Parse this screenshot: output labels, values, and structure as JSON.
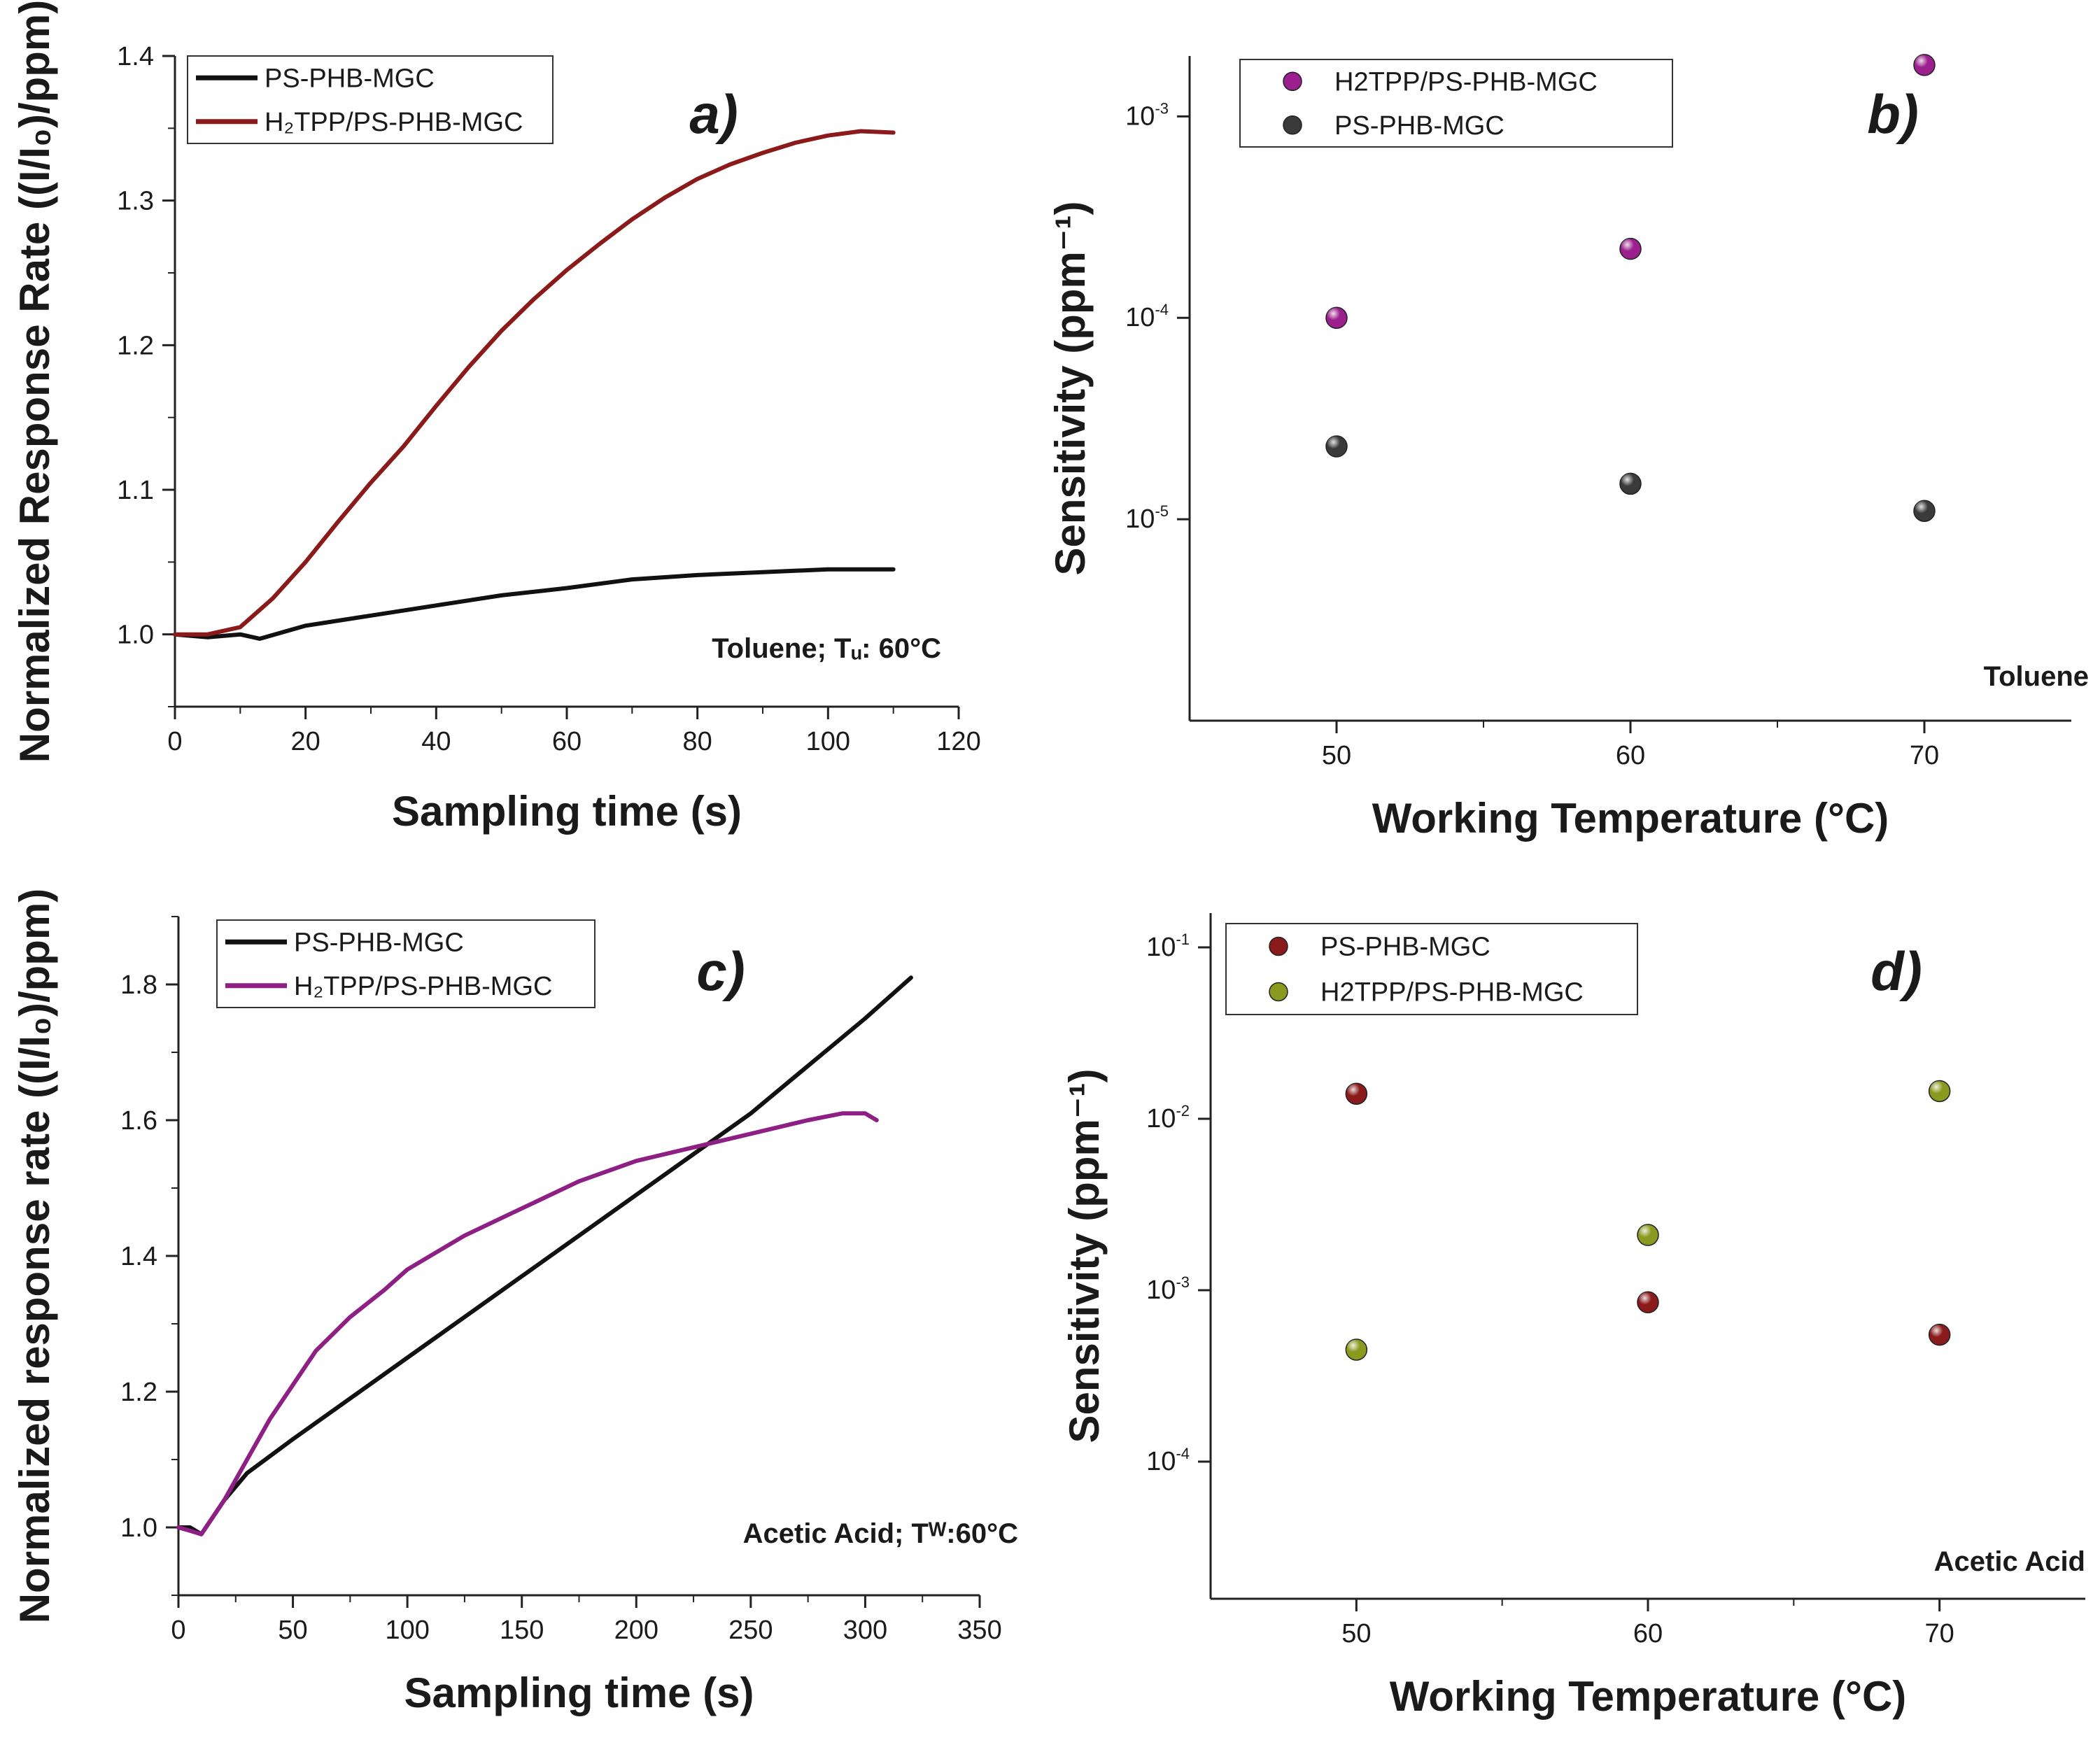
{
  "chart_data": [
    {
      "id": "a",
      "type": "line",
      "panel_label": "a)",
      "xlabel": "Sampling time (s)",
      "ylabel": "Normalized Response Rate ((I/I₀)/ppm)",
      "xlim": [
        0,
        120
      ],
      "ylim": [
        0.95,
        1.4
      ],
      "xticks": [
        0,
        20,
        40,
        60,
        80,
        100,
        120
      ],
      "yticks": [
        1.0,
        1.1,
        1.2,
        1.3,
        1.4
      ],
      "annotation": "Toluene; Tᵤ: 60°C",
      "series": [
        {
          "name": "PS-PHB-MGC",
          "color": "#111111",
          "x": [
            0,
            5,
            10,
            13,
            20,
            30,
            40,
            50,
            60,
            70,
            80,
            90,
            100,
            110
          ],
          "y": [
            1.0,
            0.998,
            1.0,
            0.997,
            1.006,
            1.013,
            1.02,
            1.027,
            1.032,
            1.038,
            1.041,
            1.043,
            1.045,
            1.045
          ]
        },
        {
          "name": "H₂TPP/PS-PHB-MGC",
          "color": "#8b1a1a",
          "x": [
            0,
            5,
            10,
            15,
            20,
            25,
            30,
            35,
            40,
            45,
            50,
            55,
            60,
            65,
            70,
            75,
            80,
            85,
            90,
            95,
            100,
            105,
            110
          ],
          "y": [
            1.0,
            1.0,
            1.005,
            1.025,
            1.05,
            1.078,
            1.105,
            1.13,
            1.158,
            1.185,
            1.21,
            1.232,
            1.252,
            1.27,
            1.287,
            1.302,
            1.315,
            1.325,
            1.333,
            1.34,
            1.345,
            1.348,
            1.347
          ]
        }
      ]
    },
    {
      "id": "b",
      "type": "scatter",
      "panel_label": "b)",
      "xlabel": "Working Temperature (°C)",
      "ylabel": "Sensitivity (ppm⁻¹)",
      "yscale": "log",
      "xlim": [
        45,
        75
      ],
      "ylim_log10": [
        -6,
        -2.7
      ],
      "xticks": [
        50,
        60,
        70
      ],
      "yticks_exp": [
        -5,
        -4,
        -3
      ],
      "annotation": "Toluene",
      "series": [
        {
          "name": "H2TPP/PS-PHB-MGC",
          "color": "#9b1f8c",
          "x": [
            50,
            60,
            70
          ],
          "y": [
            0.0001,
            0.00022,
            0.0018
          ]
        },
        {
          "name": "PS-PHB-MGC",
          "color": "#3a3a3a",
          "x": [
            50,
            60,
            70
          ],
          "y": [
            2.3e-05,
            1.5e-05,
            1.1e-05
          ]
        }
      ]
    },
    {
      "id": "c",
      "type": "line",
      "panel_label": "c)",
      "xlabel": "Sampling time (s)",
      "ylabel": "Normalized response rate ((I/I₀)/ppm)",
      "xlim": [
        0,
        350
      ],
      "ylim": [
        0.9,
        1.9
      ],
      "xticks": [
        0,
        50,
        100,
        150,
        200,
        250,
        300,
        350
      ],
      "yticks": [
        1.0,
        1.2,
        1.4,
        1.6,
        1.8
      ],
      "annotation": "Acetic Acid; Tᵂ:60°C",
      "series": [
        {
          "name": "PS-PHB-MGC",
          "color": "#111111",
          "x": [
            0,
            5,
            10,
            20,
            30,
            50,
            75,
            100,
            125,
            150,
            175,
            200,
            225,
            250,
            275,
            300,
            320
          ],
          "y": [
            1.0,
            1.0,
            0.99,
            1.04,
            1.08,
            1.13,
            1.19,
            1.25,
            1.31,
            1.37,
            1.43,
            1.49,
            1.55,
            1.61,
            1.68,
            1.75,
            1.81
          ]
        },
        {
          "name": "H₂TPP/PS-PHB-MGC",
          "color": "#8e1f84",
          "x": [
            0,
            5,
            10,
            20,
            30,
            40,
            50,
            60,
            75,
            90,
            100,
            125,
            150,
            175,
            200,
            225,
            250,
            275,
            290,
            300,
            305
          ],
          "y": [
            1.0,
            0.995,
            0.99,
            1.04,
            1.1,
            1.16,
            1.21,
            1.26,
            1.31,
            1.35,
            1.38,
            1.43,
            1.47,
            1.51,
            1.54,
            1.56,
            1.58,
            1.6,
            1.61,
            1.61,
            1.6
          ]
        }
      ]
    },
    {
      "id": "d",
      "type": "scatter",
      "panel_label": "d)",
      "xlabel": "Working Temperature (°C)",
      "ylabel": "Sensitivity (ppm⁻¹)",
      "yscale": "log",
      "xlim": [
        45,
        75
      ],
      "ylim_log10": [
        -4.8,
        -0.8
      ],
      "xticks": [
        50,
        60,
        70
      ],
      "yticks_exp": [
        -4,
        -3,
        -2,
        -1
      ],
      "annotation": "Acetic Acid",
      "series": [
        {
          "name": "PS-PHB-MGC",
          "color": "#8b1a1a",
          "x": [
            50,
            60,
            70
          ],
          "y": [
            0.014,
            0.00085,
            0.00055
          ]
        },
        {
          "name": "H2TPP/PS-PHB-MGC",
          "color": "#8a9a1f",
          "x": [
            50,
            60,
            70
          ],
          "y": [
            0.00045,
            0.0021,
            0.0145
          ]
        }
      ]
    }
  ]
}
